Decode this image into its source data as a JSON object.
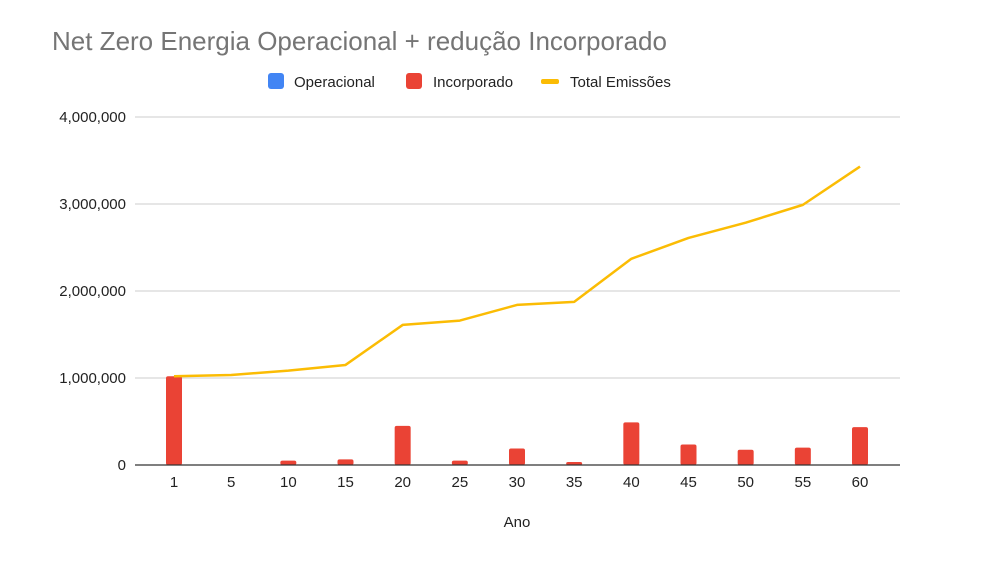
{
  "chart_data": {
    "type": "bar",
    "title": "Net Zero Energia Operacional + redução Incorporado",
    "xlabel": "Ano",
    "ylabel": "",
    "categories": [
      "1",
      "5",
      "10",
      "15",
      "20",
      "25",
      "30",
      "35",
      "40",
      "45",
      "50",
      "55",
      "60"
    ],
    "ylim": [
      0,
      4000000
    ],
    "yticks": [
      "0",
      "1,000,000",
      "2,000,000",
      "3,000,000",
      "4,000,000"
    ],
    "ytick_values": [
      0,
      1000000,
      2000000,
      3000000,
      4000000
    ],
    "grid": true,
    "legend_position": "top-center",
    "series": [
      {
        "name": "Operacional",
        "type": "bar",
        "color": "#4285F4",
        "values": [
          0,
          0,
          0,
          0,
          0,
          0,
          0,
          0,
          0,
          0,
          0,
          0,
          0
        ]
      },
      {
        "name": "Incorporado",
        "type": "bar",
        "color": "#EA4335",
        "values": [
          1020000,
          0,
          50000,
          65000,
          450000,
          50000,
          190000,
          35000,
          490000,
          235000,
          175000,
          200000,
          435000
        ]
      },
      {
        "name": "Total Emissões",
        "type": "line",
        "color": "#FBBC04",
        "values": [
          1020000,
          1035000,
          1085000,
          1150000,
          1610000,
          1660000,
          1840000,
          1875000,
          2370000,
          2610000,
          2785000,
          2990000,
          3430000
        ]
      }
    ]
  }
}
